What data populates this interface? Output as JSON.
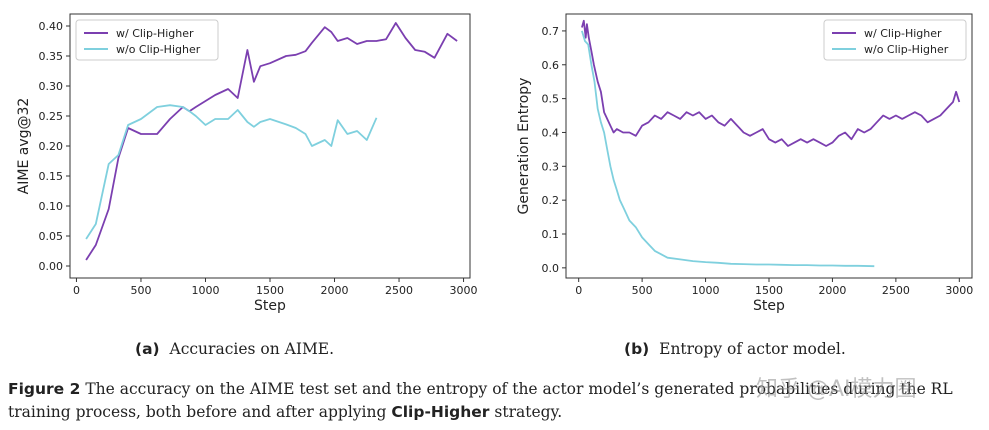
{
  "colors": {
    "with_clip": "#7b3fb0",
    "without_clip": "#7fd0de"
  },
  "chart_data": [
    {
      "type": "line",
      "xlabel": "Step",
      "ylabel": "AIME avg@32",
      "xlim": [
        -50,
        3050
      ],
      "ylim": [
        -0.02,
        0.42
      ],
      "xticks": [
        0,
        500,
        1000,
        1500,
        2000,
        2500,
        3000
      ],
      "yticks": [
        0.0,
        0.05,
        0.1,
        0.15,
        0.2,
        0.25,
        0.3,
        0.35,
        0.4
      ],
      "legend_position": "top-left",
      "series": [
        {
          "name": "w/ Clip-Higher",
          "x": [
            75,
            150,
            250,
            325,
            400,
            500,
            625,
            725,
            825,
            875,
            925,
            1000,
            1075,
            1175,
            1250,
            1325,
            1375,
            1425,
            1500,
            1625,
            1700,
            1775,
            1825,
            1925,
            1975,
            2025,
            2100,
            2175,
            2250,
            2325,
            2400,
            2475,
            2550,
            2625,
            2700,
            2775,
            2875,
            2950
          ],
          "y": [
            0.01,
            0.035,
            0.095,
            0.18,
            0.23,
            0.22,
            0.22,
            0.245,
            0.265,
            0.258,
            0.265,
            0.275,
            0.285,
            0.295,
            0.28,
            0.36,
            0.307,
            0.333,
            0.338,
            0.35,
            0.352,
            0.358,
            0.372,
            0.398,
            0.39,
            0.375,
            0.38,
            0.37,
            0.375,
            0.375,
            0.378,
            0.405,
            0.38,
            0.36,
            0.357,
            0.347,
            0.387,
            0.375
          ]
        },
        {
          "name": "w/o Clip-Higher",
          "x": [
            75,
            150,
            250,
            325,
            400,
            500,
            625,
            725,
            825,
            875,
            925,
            1000,
            1075,
            1175,
            1250,
            1325,
            1375,
            1425,
            1500,
            1625,
            1700,
            1775,
            1825,
            1925,
            1975,
            2025,
            2100,
            2175,
            2250,
            2325
          ],
          "y": [
            0.045,
            0.07,
            0.17,
            0.185,
            0.235,
            0.245,
            0.265,
            0.268,
            0.265,
            0.258,
            0.25,
            0.235,
            0.245,
            0.245,
            0.26,
            0.24,
            0.232,
            0.24,
            0.245,
            0.236,
            0.23,
            0.22,
            0.2,
            0.21,
            0.2,
            0.243,
            0.22,
            0.225,
            0.21,
            0.247
          ]
        }
      ]
    },
    {
      "type": "line",
      "xlabel": "Step",
      "ylabel": "Generation Entropy",
      "xlim": [
        -100,
        3100
      ],
      "ylim": [
        -0.03,
        0.75
      ],
      "xticks": [
        0,
        500,
        1000,
        1500,
        2000,
        2500,
        3000
      ],
      "yticks": [
        0.0,
        0.1,
        0.2,
        0.3,
        0.4,
        0.5,
        0.6,
        0.7
      ],
      "legend_position": "top-right",
      "series": [
        {
          "name": "w/ Clip-Higher",
          "x": [
            25,
            40,
            55,
            65,
            80,
            100,
            120,
            150,
            175,
            200,
            225,
            250,
            275,
            300,
            350,
            400,
            450,
            500,
            550,
            600,
            650,
            700,
            750,
            800,
            850,
            900,
            950,
            1000,
            1050,
            1100,
            1150,
            1200,
            1250,
            1300,
            1350,
            1400,
            1450,
            1500,
            1550,
            1600,
            1650,
            1700,
            1750,
            1800,
            1850,
            1900,
            1950,
            2000,
            2050,
            2100,
            2150,
            2200,
            2250,
            2300,
            2350,
            2400,
            2450,
            2500,
            2550,
            2600,
            2650,
            2700,
            2750,
            2800,
            2850,
            2900,
            2950,
            2975,
            3000
          ],
          "y": [
            0.71,
            0.73,
            0.68,
            0.72,
            0.68,
            0.64,
            0.6,
            0.55,
            0.52,
            0.46,
            0.44,
            0.42,
            0.4,
            0.41,
            0.4,
            0.4,
            0.39,
            0.42,
            0.43,
            0.45,
            0.44,
            0.46,
            0.45,
            0.44,
            0.46,
            0.45,
            0.46,
            0.44,
            0.45,
            0.43,
            0.42,
            0.44,
            0.42,
            0.4,
            0.39,
            0.4,
            0.41,
            0.38,
            0.37,
            0.38,
            0.36,
            0.37,
            0.38,
            0.37,
            0.38,
            0.37,
            0.36,
            0.37,
            0.39,
            0.4,
            0.38,
            0.41,
            0.4,
            0.41,
            0.43,
            0.45,
            0.44,
            0.45,
            0.44,
            0.45,
            0.46,
            0.45,
            0.43,
            0.44,
            0.45,
            0.47,
            0.49,
            0.52,
            0.49
          ]
        },
        {
          "name": "w/o Clip-Higher",
          "x": [
            25,
            50,
            75,
            100,
            125,
            150,
            175,
            200,
            225,
            250,
            275,
            300,
            325,
            350,
            375,
            400,
            450,
            500,
            550,
            600,
            650,
            700,
            800,
            900,
            1000,
            1100,
            1200,
            1300,
            1400,
            1500,
            1600,
            1700,
            1800,
            1900,
            2000,
            2100,
            2200,
            2330
          ],
          "y": [
            0.7,
            0.67,
            0.66,
            0.6,
            0.55,
            0.47,
            0.43,
            0.4,
            0.35,
            0.3,
            0.26,
            0.23,
            0.2,
            0.18,
            0.16,
            0.14,
            0.12,
            0.09,
            0.07,
            0.05,
            0.04,
            0.03,
            0.025,
            0.02,
            0.017,
            0.015,
            0.012,
            0.011,
            0.01,
            0.01,
            0.009,
            0.008,
            0.008,
            0.007,
            0.007,
            0.006,
            0.006,
            0.005
          ]
        }
      ]
    }
  ],
  "captions": {
    "a_label": "(a)",
    "a_text": "Accuracies on AIME.",
    "b_label": "(b)",
    "b_text": "Entropy of actor model.",
    "figure_label": "Figure 2",
    "figure_text_before": "The accuracy on the AIME test set and the entropy of the actor model’s generated probabilities during the RL training process, both before and after applying",
    "figure_keyword": "Clip-Higher",
    "figure_text_after": "strategy.",
    "watermark": "知乎 @AI模力圈"
  }
}
